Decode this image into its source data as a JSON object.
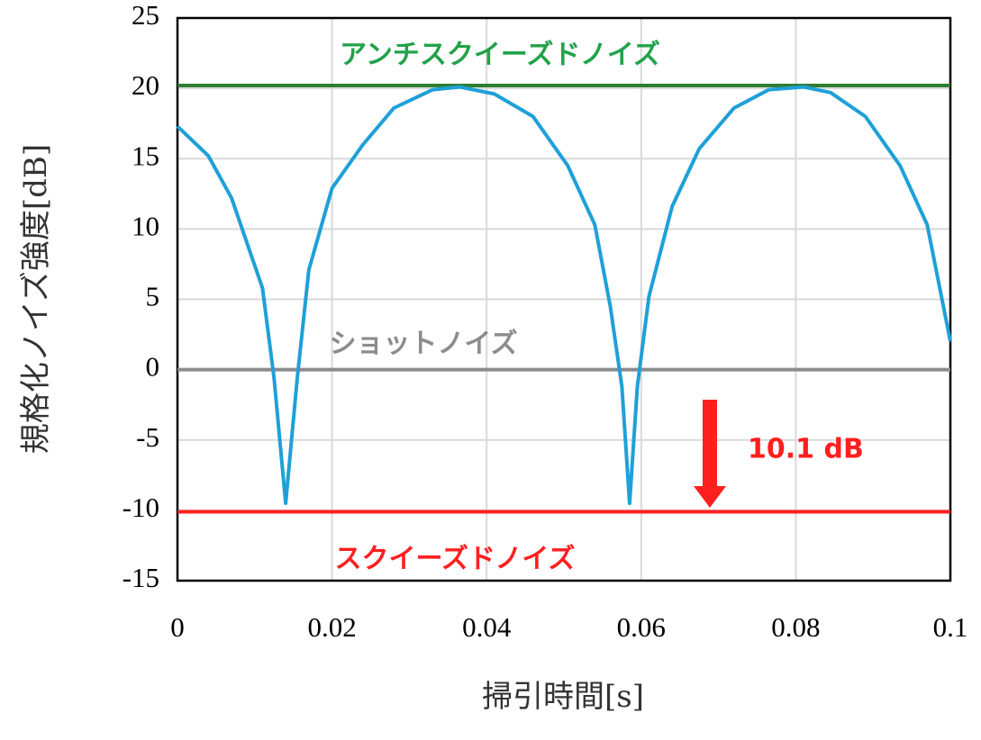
{
  "chart_data": {
    "type": "line",
    "x_label": "掃引時間[s]",
    "y_label": "規格化ノイズ強度[dB]",
    "xlim": [
      0,
      0.1
    ],
    "xticks": [
      0,
      0.02,
      0.04,
      0.06,
      0.08,
      0.1
    ],
    "ylim": [
      -15,
      25
    ],
    "yticks": [
      -15,
      -10,
      -5,
      0,
      5,
      10,
      15,
      20,
      25
    ],
    "grid": true,
    "series": [
      {
        "name": "アンチスクイーズドノイズ",
        "color": "#2e7d32",
        "label_color": "#22a24a",
        "x": [
          0,
          0.1
        ],
        "values": [
          20.2,
          20.2
        ]
      },
      {
        "name": "ショットノイズ",
        "color": "#8c8c8c",
        "label_color": "#8c8c8c",
        "x": [
          0,
          0.1
        ],
        "values": [
          0,
          0
        ]
      },
      {
        "name": "スクイーズドノイズ",
        "color": "#ff1f1f",
        "label_color": "#ff1f1f",
        "x": [
          0,
          0.1
        ],
        "values": [
          -10.1,
          -10.1
        ]
      },
      {
        "color": "#1fa0d8",
        "x": [
          0,
          0.004,
          0.007,
          0.011,
          0.0125,
          0.014,
          0.0155,
          0.017,
          0.02,
          0.024,
          0.028,
          0.033,
          0.0365,
          0.041,
          0.046,
          0.0505,
          0.054,
          0.056,
          0.0575,
          0.0585,
          0.0595,
          0.061,
          0.064,
          0.0675,
          0.072,
          0.0765,
          0.081,
          0.0845,
          0.089,
          0.0935,
          0.097,
          0.1
        ],
        "values": [
          17.3,
          15.2,
          12.2,
          5.8,
          -0.6,
          -9.5,
          -0.6,
          7.1,
          12.9,
          16,
          18.6,
          19.9,
          20.1,
          19.6,
          18,
          14.5,
          10.3,
          4.5,
          -1.2,
          -9.5,
          -1.2,
          5.2,
          11.6,
          15.7,
          18.6,
          19.9,
          20.1,
          19.7,
          18,
          14.5,
          10.3,
          2
        ]
      }
    ],
    "annotation": "10.1 dB"
  }
}
